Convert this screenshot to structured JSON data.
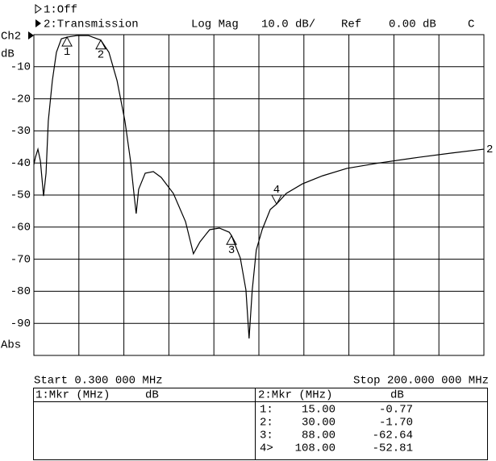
{
  "header": {
    "trace1": "1:Off",
    "trace2": "2:Transmission",
    "format": "Log Mag",
    "scale": "10.0 dB/",
    "ref_label": "Ref",
    "ref_value": "0.00 dB",
    "flag": "C"
  },
  "chart_data": {
    "type": "line",
    "channel": "Ch2",
    "y_unit": "dB",
    "y_mode": "Abs",
    "start": "Start 0.300 000 MHz",
    "stop": "Stop 200.000 000 MHz",
    "xlim": [
      0.3,
      200
    ],
    "ylim": [
      -100,
      0
    ],
    "yticks": [
      -10,
      -20,
      -30,
      -40,
      -50,
      -60,
      -70,
      -80,
      -90
    ],
    "grid": true,
    "x": [
      0.3,
      1.0,
      2.1,
      3.2,
      4.6,
      5.7,
      6.7,
      8.5,
      10.3,
      12.5,
      15,
      19.3,
      24.6,
      30,
      33.6,
      37.2,
      40.7,
      43.2,
      44.7,
      45.7,
      46.8,
      49.7,
      53.3,
      56.8,
      62.2,
      67.6,
      71.1,
      74,
      78.3,
      82.6,
      87,
      88,
      91.9,
      94.4,
      95.8,
      97.2,
      99,
      101.6,
      105.2,
      108,
      112.3,
      119.5,
      128.4,
      139.2,
      153.5,
      171.4,
      185.7,
      200
    ],
    "series": [
      {
        "name": "2",
        "color": "#000000",
        "values": [
          -40.5,
          -38.2,
          -35.7,
          -39.4,
          -50.3,
          -43.2,
          -26.9,
          -14.3,
          -5.5,
          -1.3,
          -0.77,
          -0.3,
          -0.3,
          -1.7,
          -5.5,
          -14.3,
          -26.9,
          -39.4,
          -49.5,
          -55.8,
          -48.2,
          -43.2,
          -42.7,
          -44.5,
          -49.5,
          -58.3,
          -68.3,
          -64.6,
          -60.8,
          -60.3,
          -61.6,
          -62.64,
          -69.6,
          -79.6,
          -94.7,
          -79.6,
          -67.1,
          -60.8,
          -54.5,
          -52.81,
          -49.5,
          -46.5,
          -44.0,
          -41.7,
          -40.0,
          -38.2,
          -36.9,
          -35.7
        ]
      }
    ],
    "markers": [
      {
        "label": "1",
        "x": 15,
        "y": -0.77
      },
      {
        "label": "2",
        "x": 30,
        "y": -1.7
      },
      {
        "label": "3",
        "x": 88,
        "y": -62.64
      },
      {
        "label": "4",
        "x": 108,
        "y": -52.81,
        "active": true
      }
    ]
  },
  "marker_tables": [
    {
      "title": "1:Mkr (MHz)",
      "unit": "dB",
      "rows": []
    },
    {
      "title": "2:Mkr (MHz)",
      "unit": "dB",
      "rows": [
        [
          "1:",
          "15.00",
          "-0.77"
        ],
        [
          "2:",
          "30.00",
          "-1.70"
        ],
        [
          "3:",
          "88.00",
          "-62.64"
        ],
        [
          "4>",
          "108.00",
          "-52.81"
        ]
      ]
    }
  ]
}
